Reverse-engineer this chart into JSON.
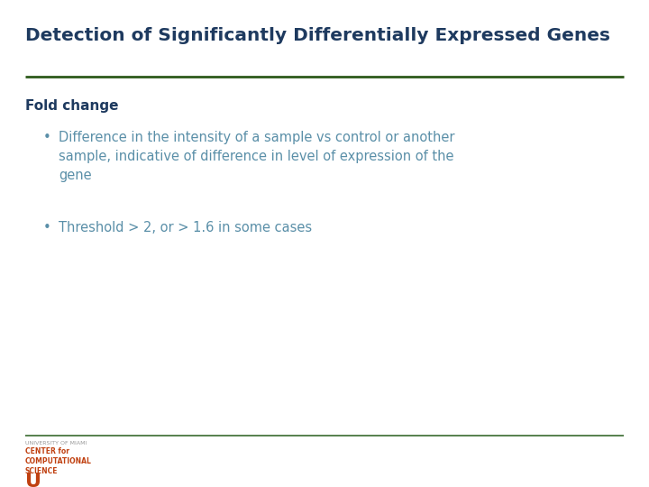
{
  "title": "Detection of Significantly Differentially Expressed Genes",
  "title_color": "#1e3a5f",
  "title_fontsize": 14.5,
  "title_bold": true,
  "separator_color": "#2d5a1b",
  "section_header": "Fold change",
  "section_header_color": "#1e3a5f",
  "section_header_bold": true,
  "section_header_fontsize": 11,
  "bullet_color": "#5a8fa8",
  "bullet_fontsize": 10.5,
  "bullets": [
    "Difference in the intensity of a sample vs control or another\nsample, indicative of difference in level of expression of the\ngene",
    "Threshold > 2, or > 1.6 in some cases"
  ],
  "background_color": "#ffffff",
  "footer_line_color": "#3a6b30",
  "logo_text_line1": "UNIVERSITY OF MIAMI",
  "logo_text_color1": "#999999",
  "logo_text_line2": "CENTER for\nCOMPUTATIONAL\nSCIENCE",
  "logo_color": "#c04010"
}
